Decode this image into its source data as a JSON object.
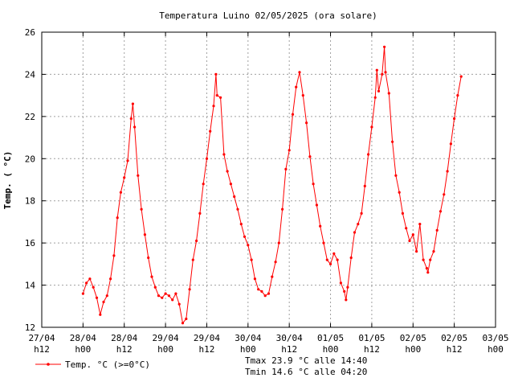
{
  "chart_data": {
    "type": "line",
    "title": "Temperatura Luino 02/05/2025 (ora solare)",
    "ylabel": "Temp. ( °C)",
    "xlabel": "",
    "ylim": [
      12,
      26
    ],
    "yticks": [
      12,
      14,
      16,
      18,
      20,
      22,
      24,
      26
    ],
    "xlim": [
      "2025-04-27T12:00",
      "2025-05-03T00:00"
    ],
    "xticks": [
      {
        "t": "2025-04-27T12:00",
        "line1": "27/04",
        "line2": "h12"
      },
      {
        "t": "2025-04-28T00:00",
        "line1": "28/04",
        "line2": "h00"
      },
      {
        "t": "2025-04-28T12:00",
        "line1": "28/04",
        "line2": "h12"
      },
      {
        "t": "2025-04-29T00:00",
        "line1": "29/04",
        "line2": "h00"
      },
      {
        "t": "2025-04-29T12:00",
        "line1": "29/04",
        "line2": "h12"
      },
      {
        "t": "2025-04-30T00:00",
        "line1": "30/04",
        "line2": "h00"
      },
      {
        "t": "2025-04-30T12:00",
        "line1": "30/04",
        "line2": "h12"
      },
      {
        "t": "2025-05-01T00:00",
        "line1": "01/05",
        "line2": "h00"
      },
      {
        "t": "2025-05-01T12:00",
        "line1": "01/05",
        "line2": "h12"
      },
      {
        "t": "2025-05-02T00:00",
        "line1": "02/05",
        "line2": "h00"
      },
      {
        "t": "2025-05-02T12:00",
        "line1": "02/05",
        "line2": "h12"
      },
      {
        "t": "2025-05-03T00:00",
        "line1": "03/05",
        "line2": "h00"
      }
    ],
    "grid": true,
    "legend": "bottom-left",
    "series": [
      {
        "name": "Temp. °C (>=0°C)",
        "color": "#ff0000",
        "points": [
          [
            "2025-04-28T00:00",
            13.6
          ],
          [
            "2025-04-28T01:00",
            14.1
          ],
          [
            "2025-04-28T02:00",
            14.3
          ],
          [
            "2025-04-28T03:00",
            13.9
          ],
          [
            "2025-04-28T04:00",
            13.4
          ],
          [
            "2025-04-28T05:00",
            12.6
          ],
          [
            "2025-04-28T06:00",
            13.2
          ],
          [
            "2025-04-28T07:00",
            13.5
          ],
          [
            "2025-04-28T08:00",
            14.3
          ],
          [
            "2025-04-28T09:00",
            15.4
          ],
          [
            "2025-04-28T10:00",
            17.2
          ],
          [
            "2025-04-28T11:00",
            18.4
          ],
          [
            "2025-04-28T12:00",
            19.1
          ],
          [
            "2025-04-28T13:00",
            19.9
          ],
          [
            "2025-04-28T14:00",
            21.9
          ],
          [
            "2025-04-28T14:30",
            22.6
          ],
          [
            "2025-04-28T15:00",
            21.5
          ],
          [
            "2025-04-28T16:00",
            19.2
          ],
          [
            "2025-04-28T17:00",
            17.6
          ],
          [
            "2025-04-28T18:00",
            16.4
          ],
          [
            "2025-04-28T19:00",
            15.3
          ],
          [
            "2025-04-28T20:00",
            14.4
          ],
          [
            "2025-04-28T21:00",
            13.9
          ],
          [
            "2025-04-28T22:00",
            13.5
          ],
          [
            "2025-04-28T23:00",
            13.4
          ],
          [
            "2025-04-29T00:00",
            13.6
          ],
          [
            "2025-04-29T01:00",
            13.5
          ],
          [
            "2025-04-29T02:00",
            13.3
          ],
          [
            "2025-04-29T03:00",
            13.6
          ],
          [
            "2025-04-29T04:00",
            13.1
          ],
          [
            "2025-04-29T05:00",
            12.2
          ],
          [
            "2025-04-29T06:00",
            12.4
          ],
          [
            "2025-04-29T07:00",
            13.8
          ],
          [
            "2025-04-29T08:00",
            15.2
          ],
          [
            "2025-04-29T09:00",
            16.1
          ],
          [
            "2025-04-29T10:00",
            17.4
          ],
          [
            "2025-04-29T11:00",
            18.8
          ],
          [
            "2025-04-29T12:00",
            20.0
          ],
          [
            "2025-04-29T13:00",
            21.3
          ],
          [
            "2025-04-29T14:00",
            22.5
          ],
          [
            "2025-04-29T14:40",
            24.0
          ],
          [
            "2025-04-29T15:00",
            23.0
          ],
          [
            "2025-04-29T16:00",
            22.9
          ],
          [
            "2025-04-29T17:00",
            20.2
          ],
          [
            "2025-04-29T18:00",
            19.4
          ],
          [
            "2025-04-29T19:00",
            18.8
          ],
          [
            "2025-04-29T20:00",
            18.2
          ],
          [
            "2025-04-29T21:00",
            17.6
          ],
          [
            "2025-04-29T22:00",
            16.9
          ],
          [
            "2025-04-29T23:00",
            16.3
          ],
          [
            "2025-04-30T00:00",
            15.9
          ],
          [
            "2025-04-30T01:00",
            15.2
          ],
          [
            "2025-04-30T02:00",
            14.3
          ],
          [
            "2025-04-30T03:00",
            13.8
          ],
          [
            "2025-04-30T04:00",
            13.7
          ],
          [
            "2025-04-30T05:00",
            13.5
          ],
          [
            "2025-04-30T06:00",
            13.6
          ],
          [
            "2025-04-30T07:00",
            14.4
          ],
          [
            "2025-04-30T08:00",
            15.1
          ],
          [
            "2025-04-30T09:00",
            16.0
          ],
          [
            "2025-04-30T10:00",
            17.6
          ],
          [
            "2025-04-30T11:00",
            19.5
          ],
          [
            "2025-04-30T12:00",
            20.4
          ],
          [
            "2025-04-30T13:00",
            22.1
          ],
          [
            "2025-04-30T14:00",
            23.4
          ],
          [
            "2025-04-30T15:00",
            24.1
          ],
          [
            "2025-04-30T16:00",
            23.0
          ],
          [
            "2025-04-30T17:00",
            21.7
          ],
          [
            "2025-04-30T18:00",
            20.1
          ],
          [
            "2025-04-30T19:00",
            18.8
          ],
          [
            "2025-04-30T20:00",
            17.8
          ],
          [
            "2025-04-30T21:00",
            16.8
          ],
          [
            "2025-04-30T22:00",
            16.0
          ],
          [
            "2025-04-30T23:00",
            15.2
          ],
          [
            "2025-05-01T00:00",
            15.0
          ],
          [
            "2025-05-01T01:00",
            15.5
          ],
          [
            "2025-05-01T02:00",
            15.2
          ],
          [
            "2025-05-01T03:00",
            14.1
          ],
          [
            "2025-05-01T04:00",
            13.7
          ],
          [
            "2025-05-01T04:30",
            13.3
          ],
          [
            "2025-05-01T05:00",
            13.9
          ],
          [
            "2025-05-01T06:00",
            15.3
          ],
          [
            "2025-05-01T07:00",
            16.5
          ],
          [
            "2025-05-01T08:00",
            16.9
          ],
          [
            "2025-05-01T09:00",
            17.4
          ],
          [
            "2025-05-01T10:00",
            18.7
          ],
          [
            "2025-05-01T11:00",
            20.2
          ],
          [
            "2025-05-01T12:00",
            21.5
          ],
          [
            "2025-05-01T13:00",
            22.9
          ],
          [
            "2025-05-01T13:30",
            24.2
          ],
          [
            "2025-05-01T14:00",
            23.2
          ],
          [
            "2025-05-01T15:00",
            24.0
          ],
          [
            "2025-05-01T15:40",
            25.3
          ],
          [
            "2025-05-01T16:00",
            24.1
          ],
          [
            "2025-05-01T17:00",
            23.1
          ],
          [
            "2025-05-01T18:00",
            20.8
          ],
          [
            "2025-05-01T19:00",
            19.2
          ],
          [
            "2025-05-01T20:00",
            18.4
          ],
          [
            "2025-05-01T21:00",
            17.4
          ],
          [
            "2025-05-01T22:00",
            16.7
          ],
          [
            "2025-05-01T23:00",
            16.1
          ],
          [
            "2025-05-02T00:00",
            16.4
          ],
          [
            "2025-05-02T01:00",
            15.6
          ],
          [
            "2025-05-02T02:00",
            16.9
          ],
          [
            "2025-05-02T03:00",
            15.2
          ],
          [
            "2025-05-02T04:00",
            14.8
          ],
          [
            "2025-05-02T04:20",
            14.6
          ],
          [
            "2025-05-02T05:00",
            15.2
          ],
          [
            "2025-05-02T06:00",
            15.6
          ],
          [
            "2025-05-02T07:00",
            16.6
          ],
          [
            "2025-05-02T08:00",
            17.5
          ],
          [
            "2025-05-02T09:00",
            18.3
          ],
          [
            "2025-05-02T10:00",
            19.4
          ],
          [
            "2025-05-02T11:00",
            20.7
          ],
          [
            "2025-05-02T12:00",
            21.9
          ],
          [
            "2025-05-02T13:00",
            23.0
          ],
          [
            "2025-05-02T14:00",
            23.9
          ]
        ]
      }
    ],
    "annotations": {
      "tmax": "Tmax 23.9 °C alle 14:40",
      "tmin": "Tmin 14.6 °C alle 04:20"
    }
  }
}
